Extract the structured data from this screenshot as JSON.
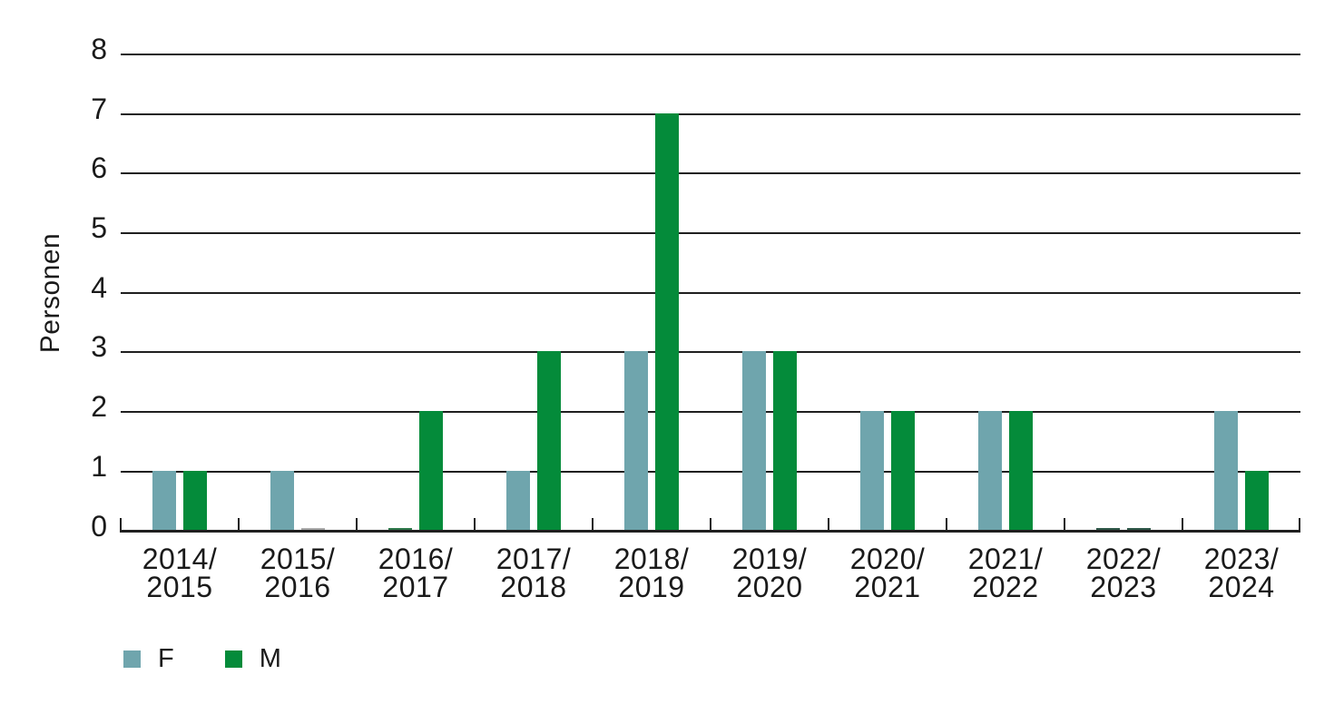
{
  "chart_data": {
    "type": "bar",
    "title": "",
    "xlabel": "",
    "ylabel": "Personen",
    "ylim": [
      0,
      8
    ],
    "yticks": [
      0,
      1,
      2,
      3,
      4,
      5,
      6,
      7,
      8
    ],
    "grid": "horizontal",
    "legend_position": "bottom-left",
    "categories": [
      [
        "2014/",
        "2015"
      ],
      [
        "2015/",
        "2016"
      ],
      [
        "2016/",
        "2017"
      ],
      [
        "2017/",
        "2018"
      ],
      [
        "2018/",
        "2019"
      ],
      [
        "2019/",
        "2020"
      ],
      [
        "2020/",
        "2021"
      ],
      [
        "2021/",
        "2022"
      ],
      [
        "2022/",
        "2023"
      ],
      [
        "2023/",
        "2024"
      ]
    ],
    "series": [
      {
        "name": "F",
        "color": "#6FA5AD",
        "values": [
          1,
          1,
          0,
          1,
          3,
          3,
          2,
          2,
          0,
          2
        ]
      },
      {
        "name": "M",
        "color": "#048B3A",
        "values": [
          1,
          0,
          2,
          3,
          7,
          3,
          2,
          2,
          0,
          1
        ]
      }
    ],
    "zero_bar_artifacts": [
      {
        "category_index": 1,
        "series": "M",
        "color": "#ABABAB"
      },
      {
        "category_index": 2,
        "series": "F",
        "color": "#2F7A4C"
      },
      {
        "category_index": 8,
        "series": "F",
        "color": "#30594A"
      },
      {
        "category_index": 8,
        "series": "M",
        "color": "#30594A"
      }
    ]
  },
  "colors": {
    "axis": "#1F1F1F",
    "text": "#1A1A1A",
    "background": "#FFFFFF"
  }
}
